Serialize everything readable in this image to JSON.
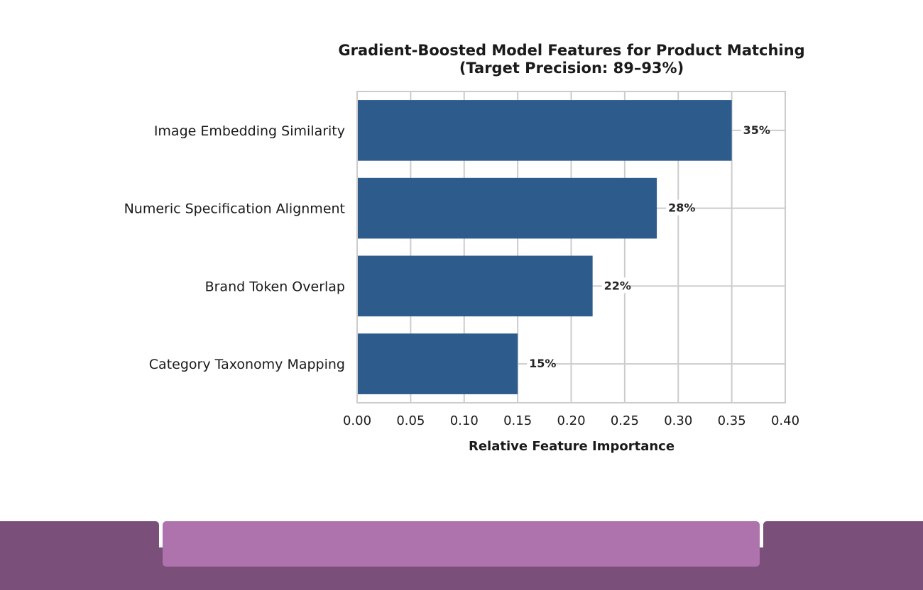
{
  "chart_data": {
    "type": "bar",
    "orientation": "horizontal",
    "title_lines": [
      "Gradient-Boosted Model Features for Product Matching",
      "(Target Precision: 89–93%)"
    ],
    "xlabel": "Relative Feature Importance",
    "ylabel": "",
    "xlim": [
      0,
      0.4
    ],
    "xticks": [
      "0.00",
      "0.05",
      "0.10",
      "0.15",
      "0.20",
      "0.25",
      "0.30",
      "0.35",
      "0.40"
    ],
    "grid": true,
    "categories": [
      "Image Embedding Similarity",
      "Numeric Specification Alignment",
      "Brand Token Overlap",
      "Category Taxonomy Mapping"
    ],
    "values": [
      0.35,
      0.28,
      0.22,
      0.15
    ],
    "data_labels": [
      "35%",
      "28%",
      "22%",
      "15%"
    ],
    "bar_color": "#2c5b8c"
  },
  "colors": {
    "grid": "#cccccc",
    "footer_dark": "#7a4f7a",
    "footer_light": "#ae73ad"
  }
}
